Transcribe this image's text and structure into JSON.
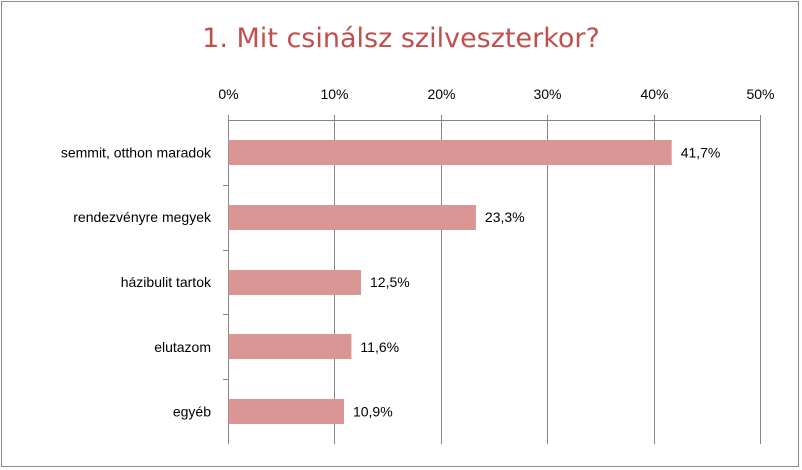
{
  "chart_data": {
    "type": "bar",
    "orientation": "horizontal",
    "title": "1. Mit csinálsz szilveszterkor?",
    "categories": [
      "semmit, otthon maradok",
      "rendezvényre megyek",
      "házibulit tartok",
      "elutazom",
      "egyéb"
    ],
    "values": [
      41.7,
      23.3,
      12.5,
      11.6,
      10.9
    ],
    "value_labels": [
      "41,7%",
      "23,3%",
      "12,5%",
      "11,6%",
      "10,9%"
    ],
    "x_ticks": [
      0,
      10,
      20,
      30,
      40,
      50
    ],
    "x_tick_labels": [
      "0%",
      "10%",
      "20%",
      "30%",
      "40%",
      "50%"
    ],
    "xlim": [
      0,
      50
    ],
    "x_axis_position": "top",
    "grid": true,
    "legend": "none",
    "bar_color": "#d99694",
    "title_color": "#c0504d",
    "grid_color": "#868686"
  }
}
